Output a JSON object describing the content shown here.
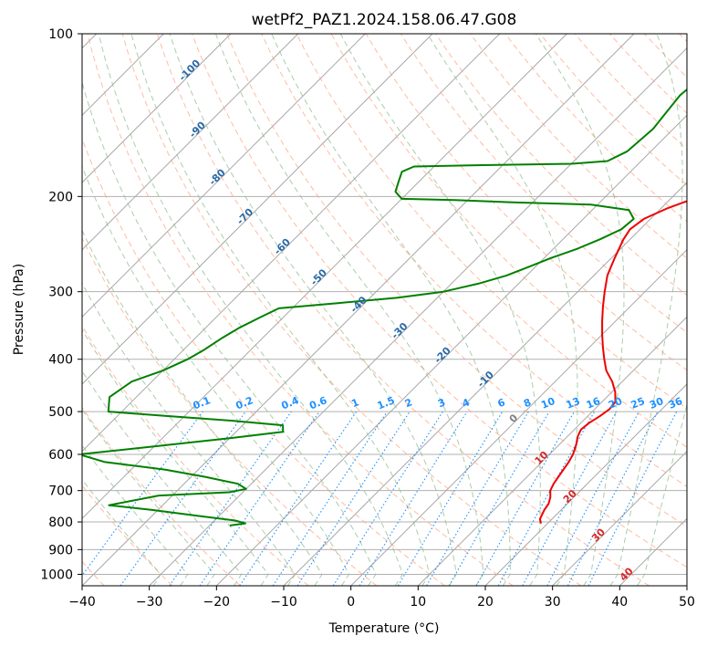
{
  "chart_data": {
    "type": "line",
    "title": "wetPf2_PAZ1.2024.158.06.47.G08",
    "xlabel": "Temperature (°C)",
    "ylabel": "Pressure (hPa)",
    "xlim": [
      -40,
      50
    ],
    "ylim": [
      1050,
      100
    ],
    "x_ticks": [
      "−40",
      "−30",
      "−20",
      "−10",
      "0",
      "10",
      "20",
      "30",
      "40",
      "50"
    ],
    "y_ticks": [
      "100",
      "200",
      "300",
      "400",
      "500",
      "600",
      "700",
      "800",
      "900",
      "1000"
    ],
    "y_tick_values": [
      100,
      200,
      300,
      400,
      500,
      600,
      700,
      800,
      900,
      1000
    ],
    "y_scale": "log",
    "grid": true,
    "skewed_isotherms": true,
    "colors": {
      "temperature": "#ee0000",
      "dewpoint": "#008000",
      "dry_adiabat": "#ffa07a",
      "moist_adiabat": "#8fbc8f",
      "mixing_ratio": "#1e90ff",
      "isotherm": "#808080"
    },
    "series": [
      {
        "id": "temperature",
        "points": [
          [
            19.0,
            805
          ],
          [
            18.2,
            790
          ],
          [
            17.5,
            760
          ],
          [
            17.2,
            740
          ],
          [
            16.5,
            720
          ],
          [
            15.5,
            700
          ],
          [
            15.0,
            680
          ],
          [
            14.5,
            650
          ],
          [
            14.0,
            620
          ],
          [
            13.5,
            600
          ],
          [
            12.5,
            575
          ],
          [
            11.5,
            555
          ],
          [
            11.0,
            540
          ],
          [
            11.2,
            525
          ],
          [
            11.8,
            510
          ],
          [
            12.2,
            495
          ],
          [
            12.0,
            480
          ],
          [
            10.5,
            460
          ],
          [
            8.5,
            440
          ],
          [
            6.0,
            420
          ],
          [
            4.0,
            400
          ],
          [
            2.0,
            380
          ],
          [
            0.0,
            360
          ],
          [
            -2.0,
            340
          ],
          [
            -4.0,
            320
          ],
          [
            -6.0,
            300
          ],
          [
            -8.0,
            280
          ],
          [
            -9.5,
            260
          ],
          [
            -11.0,
            240
          ],
          [
            -11.5,
            230
          ],
          [
            -11.0,
            220
          ],
          [
            -9.0,
            210
          ],
          [
            -6.0,
            200
          ],
          [
            -2.5,
            192
          ],
          [
            2.0,
            185
          ],
          [
            5.0,
            180
          ],
          [
            6.0,
            175
          ],
          [
            7.0,
            168
          ],
          [
            8.0,
            160
          ],
          [
            8.5,
            150
          ],
          [
            9.0,
            140
          ],
          [
            10.0,
            130
          ],
          [
            11.0,
            120
          ],
          [
            13.0,
            112
          ],
          [
            15.0,
            105
          ],
          [
            16.5,
            100
          ]
        ]
      },
      {
        "id": "dewpoint",
        "points": [
          [
            -27.0,
            812
          ],
          [
            -25.0,
            805
          ],
          [
            -27.0,
            795
          ],
          [
            -33.0,
            780
          ],
          [
            -41.0,
            760
          ],
          [
            -48.0,
            745
          ],
          [
            -42.0,
            715
          ],
          [
            -32.0,
            705
          ],
          [
            -30.0,
            695
          ],
          [
            -32.0,
            680
          ],
          [
            -38.0,
            660
          ],
          [
            -45.0,
            640
          ],
          [
            -55.0,
            620
          ],
          [
            -60.0,
            600
          ],
          [
            -50.0,
            580
          ],
          [
            -40.0,
            560
          ],
          [
            -33.0,
            545
          ],
          [
            -34.0,
            530
          ],
          [
            -42.0,
            520
          ],
          [
            -52.0,
            510
          ],
          [
            -62.0,
            500
          ],
          [
            -64.0,
            470
          ],
          [
            -63.0,
            440
          ],
          [
            -60.0,
            420
          ],
          [
            -58.0,
            400
          ],
          [
            -57.0,
            385
          ],
          [
            -56.0,
            365
          ],
          [
            -55.0,
            350
          ],
          [
            -53.5,
            335
          ],
          [
            -52.0,
            322
          ],
          [
            -44.0,
            315
          ],
          [
            -36.0,
            308
          ],
          [
            -30.0,
            300
          ],
          [
            -26.0,
            290
          ],
          [
            -23.0,
            280
          ],
          [
            -21.0,
            270
          ],
          [
            -19.0,
            260
          ],
          [
            -16.5,
            250
          ],
          [
            -14.5,
            240
          ],
          [
            -12.8,
            230
          ],
          [
            -12.5,
            220
          ],
          [
            -14.5,
            212
          ],
          [
            -21.0,
            207
          ],
          [
            -33.0,
            205
          ],
          [
            -42.0,
            203
          ],
          [
            -50.0,
            202
          ],
          [
            -52.0,
            196
          ],
          [
            -53.0,
            188
          ],
          [
            -54.0,
            180
          ],
          [
            -53.0,
            176
          ],
          [
            -43.0,
            175
          ],
          [
            -30.0,
            174
          ],
          [
            -25.0,
            172
          ],
          [
            -23.5,
            165
          ],
          [
            -23.0,
            150
          ],
          [
            -23.5,
            140
          ],
          [
            -24.0,
            130
          ],
          [
            -23.5,
            120
          ],
          [
            -21.0,
            112
          ],
          [
            -17.0,
            105
          ],
          [
            -14.0,
            100
          ]
        ]
      }
    ],
    "dry_adiabat_labels": [
      "-100",
      "-90",
      "-80",
      "-70",
      "-60",
      "-50",
      "-40",
      "-30",
      "-20",
      "-10"
    ],
    "moist_adiabat_labels": [
      "0",
      "10",
      "20",
      "30",
      "40"
    ],
    "mixing_ratio_labels": [
      "0.1",
      "0.2",
      "0.4",
      "0.6",
      "1",
      "1.5",
      "2",
      "3",
      "4",
      "6",
      "8",
      "10",
      "13",
      "16",
      "20",
      "25",
      "30",
      "36"
    ]
  }
}
